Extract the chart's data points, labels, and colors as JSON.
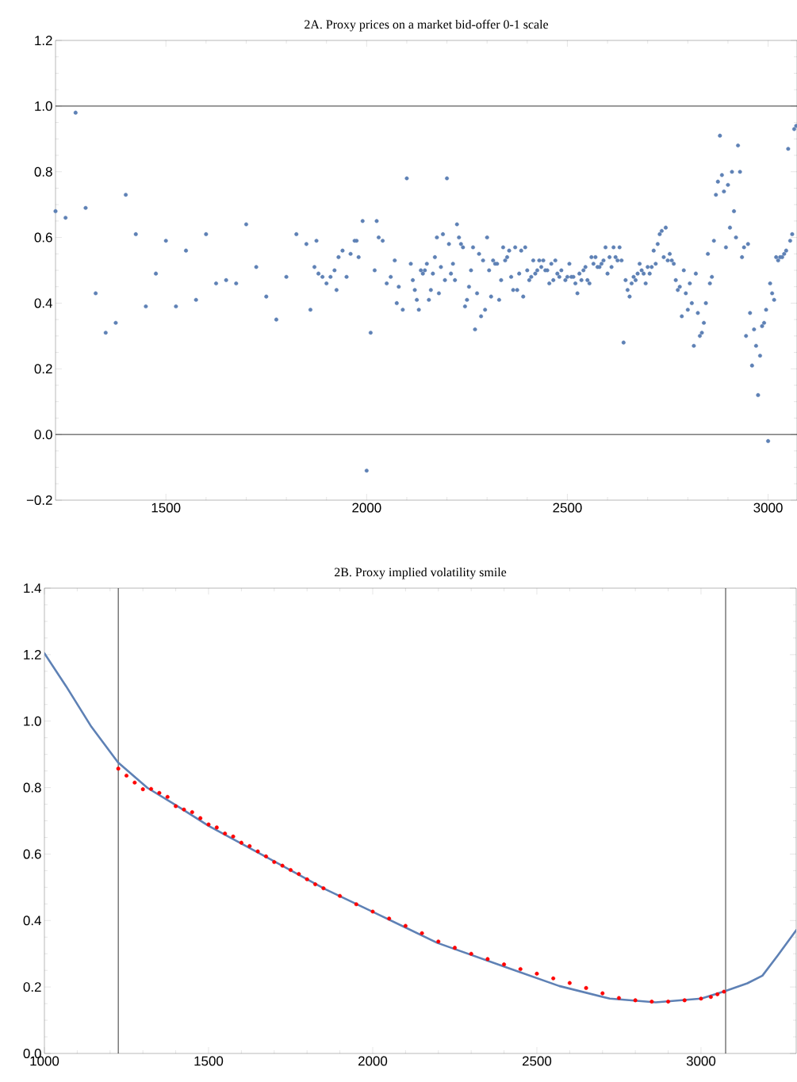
{
  "chart_data": [
    {
      "type": "scatter",
      "title": "2A. Proxy prices on a market bid-offer 0-1 scale",
      "color": "#5e81b5",
      "marker": "circle",
      "xlim": [
        1225,
        3072
      ],
      "ylim": [
        -0.2,
        1.2
      ],
      "xticks": [
        1500,
        2000,
        2500,
        3000
      ],
      "yticks": [
        {
          "value": -0.2,
          "label": "−0.2"
        },
        {
          "value": 0,
          "label": "0.0"
        },
        0.2,
        0.4,
        0.6,
        0.8,
        {
          "value": 1,
          "label": "1.0"
        },
        1.2
      ],
      "ref_lines": [
        {
          "axis": "y",
          "value": 0
        },
        {
          "axis": "y",
          "value": 1
        }
      ],
      "x": [
        1225,
        1250,
        1275,
        1300,
        1325,
        1350,
        1375,
        1400,
        1425,
        1450,
        1475,
        1500,
        1525,
        1550,
        1575,
        1600,
        1625,
        1650,
        1675,
        1700,
        1725,
        1750,
        1775,
        1800,
        1825,
        1850,
        1860,
        1870,
        1875,
        1880,
        1890,
        1900,
        1910,
        1920,
        1925,
        1930,
        1940,
        1950,
        1960,
        1970,
        1975,
        1980,
        1990,
        2000,
        2010,
        2020,
        2025,
        2030,
        2040,
        2050,
        2060,
        2070,
        2075,
        2080,
        2090,
        2100,
        2110,
        2115,
        2120,
        2125,
        2130,
        2135,
        2140,
        2145,
        2150,
        2155,
        2160,
        2165,
        2170,
        2175,
        2180,
        2185,
        2190,
        2195,
        2200,
        2205,
        2210,
        2215,
        2220,
        2225,
        2230,
        2235,
        2240,
        2245,
        2250,
        2255,
        2260,
        2265,
        2270,
        2275,
        2280,
        2285,
        2290,
        2295,
        2300,
        2305,
        2310,
        2315,
        2320,
        2325,
        2330,
        2335,
        2340,
        2345,
        2350,
        2355,
        2360,
        2365,
        2370,
        2375,
        2380,
        2385,
        2390,
        2395,
        2400,
        2405,
        2410,
        2415,
        2420,
        2425,
        2430,
        2435,
        2440,
        2445,
        2450,
        2455,
        2460,
        2465,
        2470,
        2475,
        2480,
        2485,
        2495,
        2500,
        2505,
        2510,
        2515,
        2520,
        2525,
        2530,
        2535,
        2540,
        2545,
        2550,
        2555,
        2560,
        2565,
        2570,
        2575,
        2580,
        2585,
        2590,
        2595,
        2600,
        2605,
        2610,
        2615,
        2620,
        2625,
        2630,
        2635,
        2640,
        2645,
        2650,
        2655,
        2660,
        2665,
        2670,
        2675,
        2680,
        2685,
        2690,
        2695,
        2700,
        2705,
        2710,
        2715,
        2720,
        2725,
        2730,
        2735,
        2740,
        2745,
        2750,
        2755,
        2760,
        2765,
        2770,
        2775,
        2780,
        2785,
        2790,
        2795,
        2800,
        2805,
        2810,
        2815,
        2820,
        2825,
        2830,
        2835,
        2840,
        2845,
        2850,
        2855,
        2860,
        2865,
        2870,
        2875,
        2880,
        2885,
        2890,
        2895,
        2900,
        2905,
        2910,
        2915,
        2920,
        2925,
        2930,
        2935,
        2940,
        2945,
        2950,
        2955,
        2960,
        2965,
        2970,
        2975,
        2980,
        2985,
        2990,
        2995,
        3000,
        3005,
        3010,
        3015,
        3020,
        3025,
        3030,
        3035,
        3040,
        3045,
        3050,
        3055,
        3060,
        3065,
        3070
      ],
      "values": [
        0.68,
        0.66,
        0.98,
        0.69,
        0.43,
        0.31,
        0.34,
        0.73,
        0.61,
        0.39,
        0.49,
        0.59,
        0.39,
        0.56,
        0.41,
        0.61,
        0.46,
        0.47,
        0.46,
        0.64,
        0.51,
        0.42,
        0.35,
        0.48,
        0.61,
        0.58,
        0.38,
        0.51,
        0.59,
        0.49,
        0.48,
        0.46,
        0.48,
        0.5,
        0.44,
        0.54,
        0.56,
        0.48,
        0.55,
        0.59,
        0.59,
        0.54,
        0.65,
        -0.11,
        0.31,
        0.5,
        0.65,
        0.6,
        0.59,
        0.46,
        0.48,
        0.53,
        0.4,
        0.45,
        0.38,
        0.78,
        0.52,
        0.47,
        0.44,
        0.41,
        0.38,
        0.5,
        0.49,
        0.5,
        0.52,
        0.41,
        0.44,
        0.49,
        0.54,
        0.6,
        0.43,
        0.51,
        0.61,
        0.47,
        0.78,
        0.58,
        0.49,
        0.52,
        0.47,
        0.64,
        0.6,
        0.58,
        0.57,
        0.39,
        0.41,
        0.45,
        0.5,
        0.57,
        0.32,
        0.43,
        0.55,
        0.36,
        0.53,
        0.38,
        0.6,
        0.5,
        0.42,
        0.53,
        0.52,
        0.52,
        0.41,
        0.47,
        0.57,
        0.53,
        0.54,
        0.56,
        0.48,
        0.44,
        0.57,
        0.44,
        0.49,
        0.56,
        0.42,
        0.57,
        0.5,
        0.47,
        0.48,
        0.53,
        0.49,
        0.5,
        0.53,
        0.51,
        0.53,
        0.5,
        0.5,
        0.46,
        0.52,
        0.47,
        0.53,
        0.49,
        0.48,
        0.5,
        0.47,
        0.48,
        0.52,
        0.48,
        0.48,
        0.46,
        0.43,
        0.49,
        0.47,
        0.5,
        0.51,
        0.47,
        0.46,
        0.54,
        0.52,
        0.54,
        0.51,
        0.51,
        0.52,
        0.53,
        0.57,
        0.49,
        0.54,
        0.51,
        0.57,
        0.54,
        0.53,
        0.57,
        0.53,
        0.28,
        0.47,
        0.44,
        0.42,
        0.46,
        0.48,
        0.47,
        0.49,
        0.52,
        0.5,
        0.49,
        0.46,
        0.51,
        0.49,
        0.51,
        0.56,
        0.52,
        0.58,
        0.61,
        0.62,
        0.54,
        0.63,
        0.53,
        0.55,
        0.53,
        0.52,
        0.47,
        0.44,
        0.45,
        0.36,
        0.5,
        0.43,
        0.38,
        0.46,
        0.4,
        0.27,
        0.49,
        0.37,
        0.3,
        0.31,
        0.34,
        0.4,
        0.55,
        0.46,
        0.48,
        0.59,
        0.73,
        0.77,
        0.91,
        0.79,
        0.74,
        0.57,
        0.76,
        0.63,
        0.8,
        0.68,
        0.6,
        0.88,
        0.8,
        0.54,
        0.57,
        0.3,
        0.58,
        0.37,
        0.21,
        0.32,
        0.27,
        0.12,
        0.24,
        0.33,
        0.34,
        0.38,
        -0.02,
        0.46,
        0.43,
        0.41,
        0.54,
        0.53,
        0.54,
        0.54,
        0.55,
        0.56,
        0.87,
        0.59,
        0.61,
        0.93,
        0.94
      ]
    },
    {
      "type": "line",
      "title": "2B. Proxy implied volatility smile",
      "xlim": [
        1000,
        3290
      ],
      "ylim": [
        0,
        1.4
      ],
      "xticks": [
        1000,
        1500,
        2000,
        2500,
        3000
      ],
      "yticks": [
        {
          "value": 0,
          "label": "0.0"
        },
        0.2,
        0.4,
        0.6,
        0.8,
        {
          "value": 1,
          "label": "1.0"
        },
        1.2,
        1.4
      ],
      "ref_lines": [
        {
          "axis": "x",
          "value": 1225
        },
        {
          "axis": "x",
          "value": 3075
        }
      ],
      "series": [
        {
          "type": "line",
          "color": "#5e81b5",
          "marker": "none",
          "x": [
            1000,
            1066,
            1143,
            1224,
            1314,
            1391,
            1500,
            1700,
            1856,
            2003,
            2196,
            2413,
            2568,
            2722,
            2862,
            3001,
            3074,
            3141,
            3187,
            3234,
            3290
          ],
          "values": [
            1.204,
            1.105,
            0.983,
            0.876,
            0.799,
            0.753,
            0.685,
            0.578,
            0.494,
            0.425,
            0.333,
            0.257,
            0.203,
            0.165,
            0.154,
            0.165,
            0.188,
            0.211,
            0.234,
            0.295,
            0.371
          ]
        },
        {
          "type": "scatter",
          "color": "#ff0000",
          "marker": "circle",
          "x": [
            1225,
            1250,
            1275,
            1300,
            1325,
            1350,
            1375,
            1400,
            1425,
            1450,
            1475,
            1500,
            1525,
            1550,
            1575,
            1600,
            1625,
            1650,
            1675,
            1700,
            1725,
            1750,
            1775,
            1800,
            1825,
            1850,
            1900,
            1950,
            2000,
            2050,
            2100,
            2150,
            2200,
            2250,
            2300,
            2350,
            2400,
            2450,
            2500,
            2550,
            2600,
            2650,
            2700,
            2750,
            2800,
            2850,
            2900,
            2950,
            3000,
            3030,
            3050,
            3070
          ],
          "values": [
            0.857,
            0.836,
            0.815,
            0.795,
            0.796,
            0.784,
            0.772,
            0.744,
            0.734,
            0.726,
            0.708,
            0.689,
            0.68,
            0.662,
            0.653,
            0.634,
            0.624,
            0.608,
            0.593,
            0.576,
            0.565,
            0.552,
            0.54,
            0.524,
            0.509,
            0.497,
            0.474,
            0.449,
            0.427,
            0.406,
            0.384,
            0.362,
            0.337,
            0.318,
            0.3,
            0.284,
            0.268,
            0.254,
            0.24,
            0.226,
            0.212,
            0.197,
            0.181,
            0.167,
            0.16,
            0.156,
            0.156,
            0.16,
            0.165,
            0.17,
            0.178,
            0.186
          ]
        }
      ]
    }
  ]
}
